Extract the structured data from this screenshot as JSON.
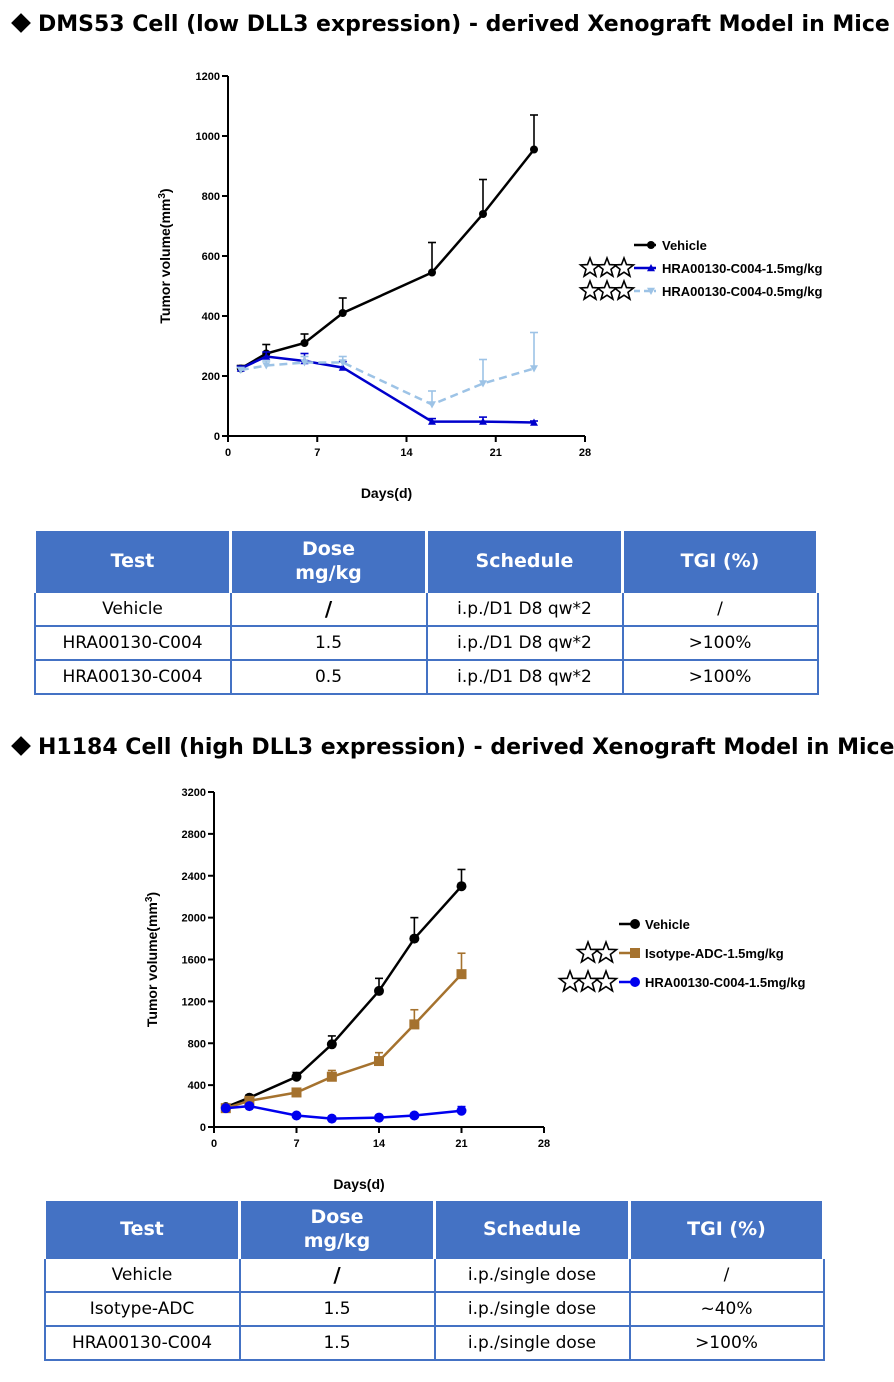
{
  "sections": [
    {
      "title": "DMS53 Cell (low DLL3 expression) - derived Xenograft Model in Mice",
      "chart_data": {
        "type": "line",
        "title": "",
        "xlabel": "Days(d)",
        "ylabel": "Tumor volume(mm3)",
        "xlim": [
          0,
          28
        ],
        "ylim": [
          0,
          1200
        ],
        "xticks": [
          0,
          7,
          14,
          21,
          28
        ],
        "yticks": [
          0,
          200,
          400,
          600,
          800,
          1000,
          1200
        ],
        "series": [
          {
            "name": "Vehicle",
            "color": "#000000",
            "dashed": false,
            "marker": "circle",
            "stars": 0,
            "x": [
              1,
              3,
              6,
              9,
              16,
              20,
              24
            ],
            "y": [
              225,
              275,
              310,
              410,
              545,
              740,
              955
            ],
            "err": [
              10,
              30,
              30,
              50,
              100,
              115,
              115
            ]
          },
          {
            "name": "HRA00130-C004-1.5mg/kg",
            "color": "#0000CC",
            "dashed": false,
            "marker": "triangle",
            "stars": 3,
            "x": [
              1,
              3,
              6,
              9,
              16,
              20,
              24
            ],
            "y": [
              225,
              265,
              250,
              228,
              48,
              48,
              45
            ],
            "err": [
              8,
              15,
              25,
              20,
              10,
              15,
              5
            ]
          },
          {
            "name": "HRA00130-C004-0.5mg/kg",
            "color": "#9DC3E6",
            "dashed": true,
            "marker": "triangle-down",
            "stars": 3,
            "x": [
              1,
              3,
              6,
              9,
              16,
              20,
              24
            ],
            "y": [
              220,
              235,
              245,
              245,
              105,
              175,
              225
            ],
            "err": [
              8,
              15,
              20,
              20,
              45,
              80,
              120
            ]
          }
        ]
      },
      "table": {
        "headers": [
          "Test",
          "Dose\nmg/kg",
          "Schedule",
          "TGI (%)"
        ],
        "rows": [
          [
            "Vehicle",
            "/",
            "i.p./D1 D8 qw*2",
            "/"
          ],
          [
            "HRA00130-C004",
            "1.5",
            "i.p./D1 D8 qw*2",
            ">100%"
          ],
          [
            "HRA00130-C004",
            "0.5",
            "i.p./D1 D8 qw*2",
            ">100%"
          ]
        ]
      }
    },
    {
      "title": "H1184 Cell (high DLL3 expression) - derived Xenograft Model in Mice",
      "chart_data": {
        "type": "line",
        "title": "",
        "xlabel": "Days(d)",
        "ylabel": "Tumor volume(mm3)",
        "xlim": [
          0,
          28
        ],
        "ylim": [
          0,
          3200
        ],
        "xticks": [
          0,
          7,
          14,
          21,
          28
        ],
        "yticks": [
          0,
          400,
          800,
          1200,
          1600,
          2000,
          2400,
          2800,
          3200
        ],
        "series": [
          {
            "name": "Vehicle",
            "color": "#000000",
            "dashed": false,
            "marker": "circle",
            "stars": 0,
            "x": [
              1,
              3,
              7,
              10,
              14,
              17,
              21
            ],
            "y": [
              190,
              280,
              480,
              790,
              1300,
              1800,
              2300
            ],
            "err": [
              20,
              25,
              40,
              80,
              120,
              200,
              160
            ]
          },
          {
            "name": "Isotype-ADC-1.5mg/kg",
            "color": "#A5722E",
            "dashed": false,
            "marker": "square",
            "stars": 2,
            "x": [
              1,
              3,
              7,
              10,
              14,
              17,
              21
            ],
            "y": [
              180,
              250,
              330,
              480,
              630,
              980,
              1460
            ],
            "err": [
              15,
              20,
              30,
              60,
              80,
              140,
              200
            ]
          },
          {
            "name": "HRA00130-C004-1.5mg/kg",
            "color": "#0000EE",
            "dashed": false,
            "marker": "circle",
            "stars": 3,
            "x": [
              1,
              3,
              7,
              10,
              14,
              17,
              21
            ],
            "y": [
              180,
              200,
              110,
              80,
              90,
              110,
              155
            ],
            "err": [
              15,
              20,
              15,
              10,
              15,
              20,
              40
            ]
          }
        ]
      },
      "table": {
        "headers": [
          "Test",
          "Dose\nmg/kg",
          "Schedule",
          "TGI (%)"
        ],
        "rows": [
          [
            "Vehicle",
            "/",
            "i.p./single dose",
            "/"
          ],
          [
            "Isotype-ADC",
            "1.5",
            "i.p./single dose",
            "~40%"
          ],
          [
            "HRA00130-C004",
            "1.5",
            "i.p./single dose",
            ">100%"
          ]
        ]
      }
    }
  ]
}
